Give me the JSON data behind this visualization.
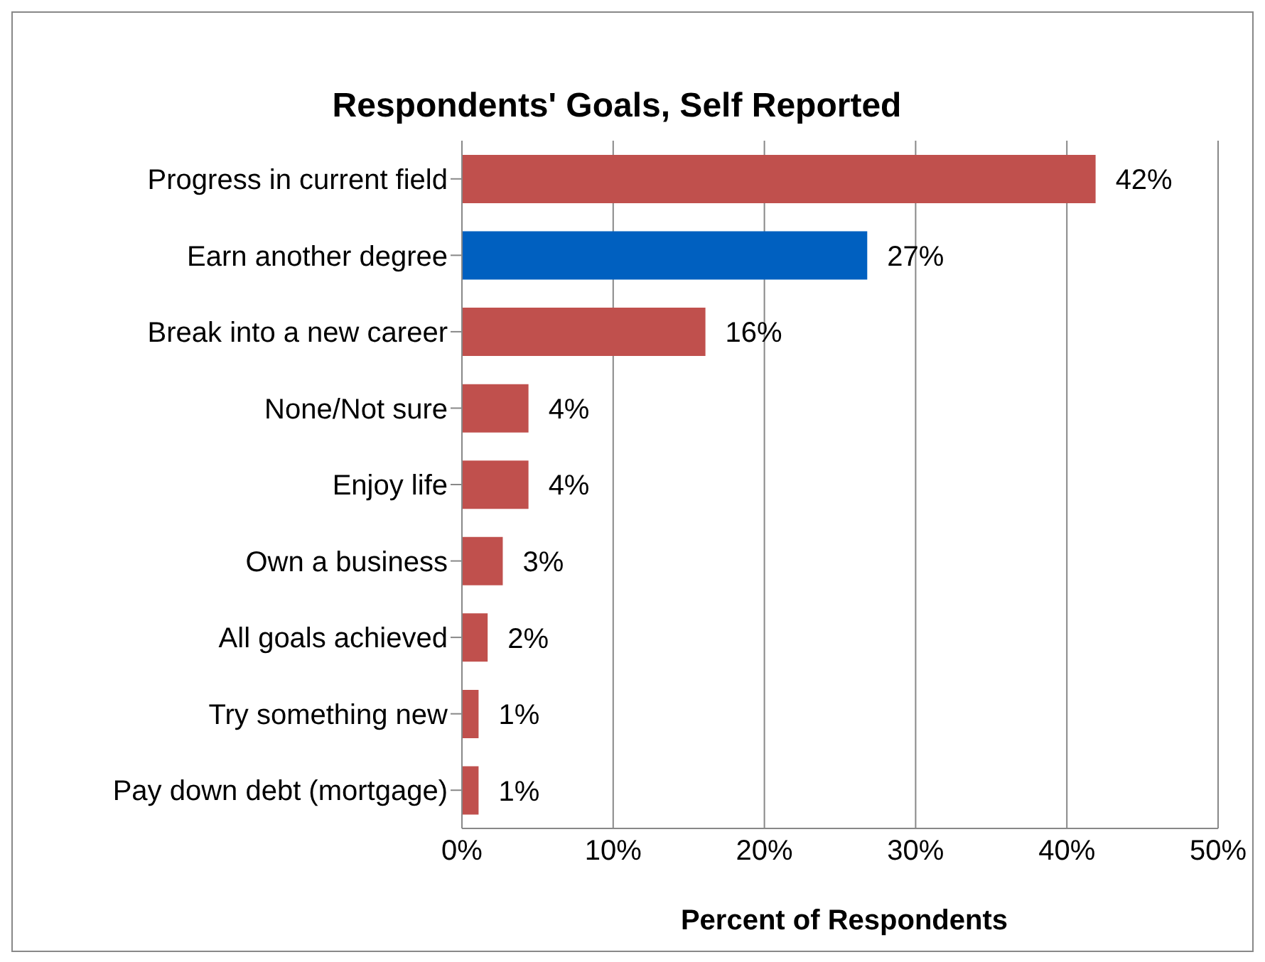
{
  "chart_data": {
    "type": "bar",
    "orientation": "horizontal",
    "title": "Respondents' Goals, Self Reported",
    "xlabel": "Percent of Respondents",
    "categories": [
      "Progress in current field",
      "Earn another degree",
      "Break into a new career",
      "None/Not sure",
      "Enjoy life",
      "Own a business",
      "All goals achieved",
      "Try something new",
      "Pay down debt (mortgage)"
    ],
    "values": [
      41.9,
      26.8,
      16.1,
      4.4,
      4.4,
      2.7,
      1.7,
      1.1,
      1.1
    ],
    "value_labels": [
      "42%",
      "27%",
      "16%",
      "4%",
      "4%",
      "3%",
      "2%",
      "1%",
      "1%"
    ],
    "colors": [
      "#c0504d",
      "#0060c0",
      "#c0504d",
      "#c0504d",
      "#c0504d",
      "#c0504d",
      "#c0504d",
      "#c0504d",
      "#c0504d"
    ],
    "xlim": [
      0,
      50
    ],
    "xticks": [
      {
        "value": 0,
        "label": "0%"
      },
      {
        "value": 10,
        "label": "10%"
      },
      {
        "value": 20,
        "label": "20%"
      },
      {
        "value": 30,
        "label": "30%"
      },
      {
        "value": 40,
        "label": "40%"
      },
      {
        "value": 50,
        "label": "50%"
      }
    ],
    "grid": "x"
  }
}
